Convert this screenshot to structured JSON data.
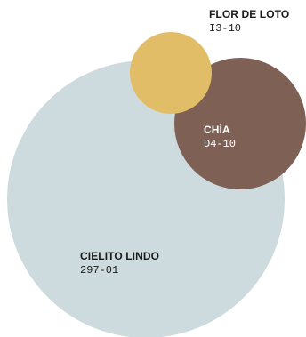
{
  "swatches": {
    "cielito_lindo": {
      "name": "CIELITO LINDO",
      "code": "297-01",
      "color": "#cddbdf"
    },
    "chia": {
      "name": "CHÍA",
      "code": "D4-10",
      "color": "#7f6055"
    },
    "flor_de_loto": {
      "name": "FLOR DE LOTO",
      "code": "I3-10",
      "color": "#e2bd67"
    }
  }
}
